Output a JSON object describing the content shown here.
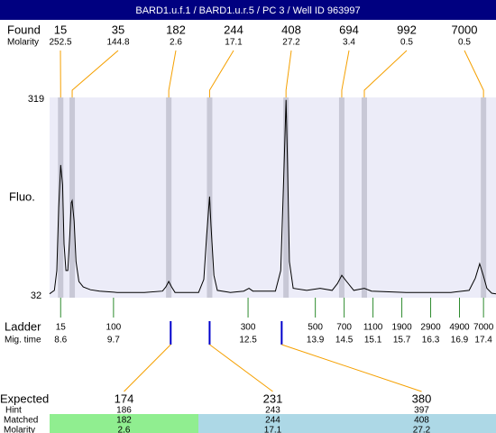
{
  "chart_data": {
    "type": "line",
    "title": "BARD1.u.f.1 / BARD1.u.r.5 / PC 3 / Well ID 963997",
    "y_label": "Fluo.",
    "x": [
      8.37,
      8.47,
      8.52,
      8.56,
      8.6,
      8.64,
      8.67,
      8.71,
      8.75,
      8.79,
      8.82,
      8.84,
      8.88,
      8.92,
      8.98,
      9.07,
      9.22,
      9.41,
      9.78,
      10.34,
      10.72,
      10.79,
      10.85,
      10.91,
      10.98,
      11.47,
      11.58,
      11.64,
      11.7,
      11.73,
      11.79,
      11.86,
      12.13,
      12.41,
      12.52,
      12.6,
      13.07,
      13.18,
      13.24,
      13.29,
      13.32,
      13.36,
      13.44,
      13.72,
      14.0,
      14.25,
      14.36,
      14.45,
      14.55,
      14.7,
      14.92,
      15.07,
      15.79,
      16.72,
      17.1,
      17.23,
      17.32,
      17.4,
      17.47,
      17.57,
      17.66
    ],
    "values": [
      35,
      40,
      69,
      161,
      223,
      194,
      108,
      69,
      69,
      121,
      168,
      171,
      141,
      82,
      53,
      45,
      41,
      39,
      37,
      37,
      39,
      45,
      53,
      45,
      37,
      37,
      56,
      121,
      177,
      134,
      62,
      40,
      37,
      39,
      43,
      39,
      39,
      69,
      200,
      318,
      227,
      82,
      43,
      40,
      43,
      40,
      50,
      62,
      53,
      40,
      43,
      39,
      37,
      37,
      40,
      58,
      79,
      61,
      43,
      36,
      35
    ],
    "color": "#000000",
    "xlim": [
      8.37,
      17.66
    ],
    "ylim": [
      32,
      319
    ],
    "yticks": [
      319,
      32
    ],
    "found": {
      "label": "Found",
      "molarity_label": "Molarity",
      "sizes": [
        15,
        35,
        182,
        244,
        408,
        694,
        992,
        7000
      ],
      "molarities": [
        252.5,
        144.8,
        2.6,
        17.1,
        27.2,
        3.4,
        0.5,
        0.5
      ],
      "times": [
        8.6,
        8.84,
        10.85,
        11.7,
        13.29,
        14.45,
        14.92,
        17.4
      ]
    },
    "ladder": {
      "label": "Ladder",
      "time_label": "Mig. time",
      "sizes": [
        15,
        100,
        300,
        500,
        700,
        1100,
        1900,
        2900,
        4900,
        7000
      ],
      "times": [
        8.6,
        9.7,
        12.5,
        13.9,
        14.5,
        15.1,
        15.7,
        16.3,
        16.9,
        17.4
      ]
    },
    "expected": {
      "label": "Expected",
      "hint_label": "Hint",
      "matched_label": "Matched",
      "molarity_label": "Molarity",
      "sizes": [
        174,
        231,
        380
      ],
      "times": [
        10.89,
        11.7,
        13.2
      ],
      "hints": [
        186,
        243,
        397
      ],
      "matched": [
        182,
        244,
        408
      ],
      "molarities": [
        2.6,
        17.1,
        27.2
      ],
      "colors": [
        "#90ee90",
        "#add8e6",
        "#add8e6"
      ]
    }
  }
}
